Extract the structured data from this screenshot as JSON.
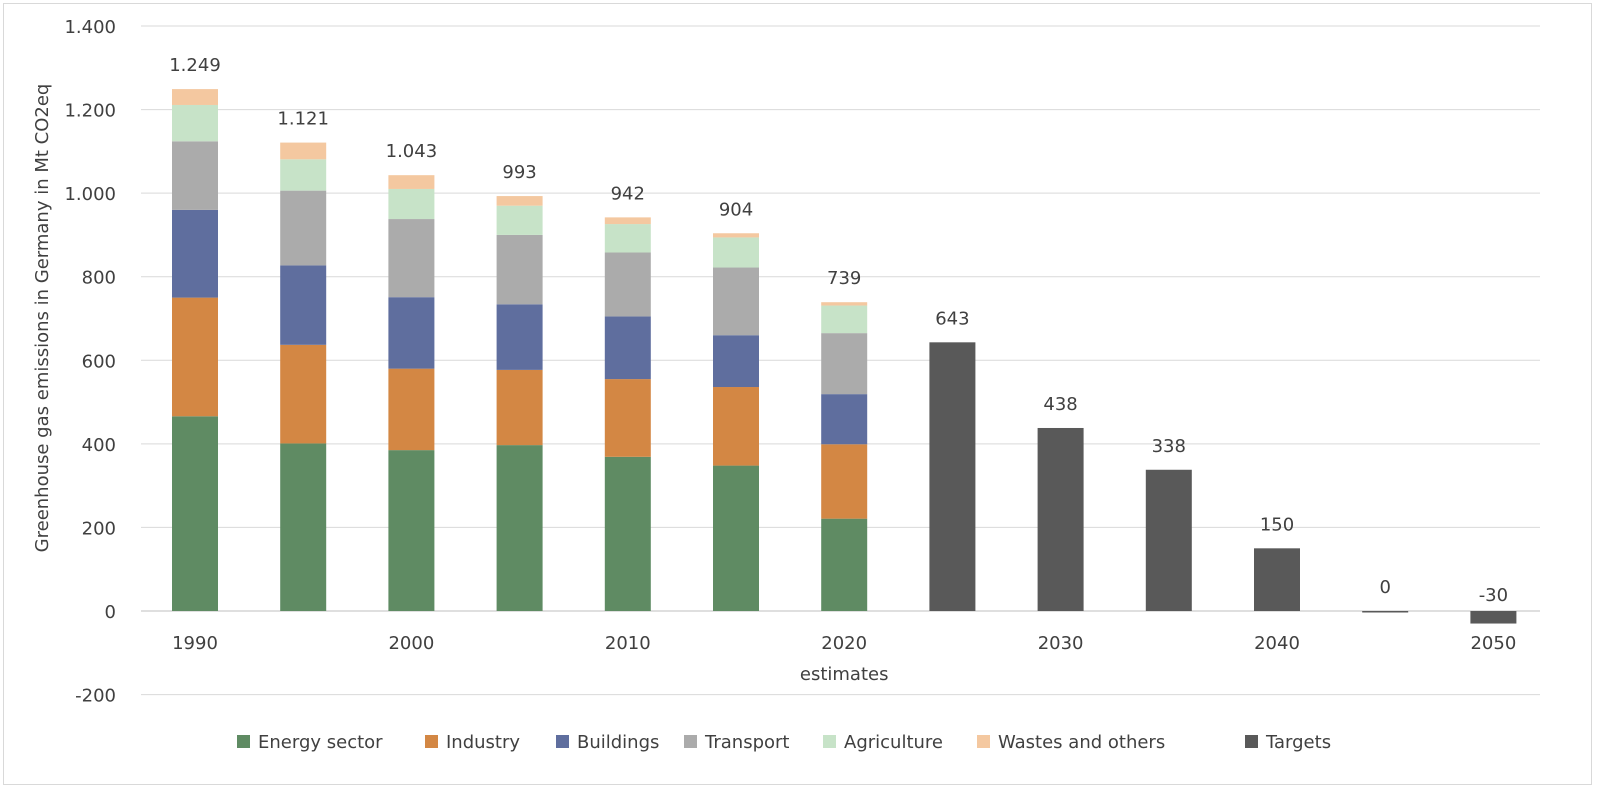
{
  "chart_data": {
    "type": "bar",
    "stacked": true,
    "title": "",
    "ylabel": "Greenhouse gas emissions in Germany in Mt CO2eq",
    "xlabel": "",
    "ylim": [
      -200,
      1400
    ],
    "yticks": [
      -200,
      0,
      200,
      400,
      600,
      800,
      1000,
      1200,
      1400
    ],
    "ytick_labels": [
      "-200",
      "0",
      "200",
      "400",
      "600",
      "800",
      "1.000",
      "1.200",
      "1.400"
    ],
    "grid": true,
    "legend_position": "bottom",
    "categories": [
      "1990",
      "1995",
      "2000",
      "2005",
      "2010",
      "2015",
      "2020",
      "2025",
      "2030",
      "2035",
      "2040",
      "2045",
      "2050"
    ],
    "tick_labels": [
      "1990",
      "",
      "2000",
      "",
      "2010",
      "",
      "2020",
      "",
      "2030",
      "",
      "2040",
      "",
      "2050"
    ],
    "tick_sublabels": [
      "",
      "",
      "",
      "",
      "",
      "",
      "estimates",
      "",
      "",
      "",
      "",
      "",
      ""
    ],
    "series": [
      {
        "name": "Energy sector",
        "color": "#5f8b63",
        "values": [
          466,
          401,
          385,
          397,
          369,
          348,
          221,
          null,
          null,
          null,
          null,
          null,
          null
        ]
      },
      {
        "name": "Industry",
        "color": "#d38744",
        "values": [
          284,
          236,
          195,
          180,
          186,
          188,
          178,
          null,
          null,
          null,
          null,
          null,
          null
        ]
      },
      {
        "name": "Buildings",
        "color": "#5f6e9e",
        "values": [
          210,
          190,
          171,
          157,
          150,
          124,
          120,
          null,
          null,
          null,
          null,
          null,
          null
        ]
      },
      {
        "name": "Transport",
        "color": "#ababab",
        "values": [
          164,
          179,
          187,
          166,
          153,
          162,
          146,
          null,
          null,
          null,
          null,
          null,
          null
        ]
      },
      {
        "name": "Agriculture",
        "color": "#c7e3c8",
        "values": [
          87,
          75,
          72,
          70,
          68,
          72,
          66,
          null,
          null,
          null,
          null,
          null,
          null
        ]
      },
      {
        "name": "Wastes and others",
        "color": "#f4c8a0",
        "values": [
          38,
          40,
          33,
          23,
          16,
          10,
          8,
          null,
          null,
          null,
          null,
          null,
          null
        ]
      },
      {
        "name": "Targets",
        "color": "#595959",
        "values": [
          null,
          null,
          null,
          null,
          null,
          null,
          null,
          643,
          438,
          338,
          150,
          0,
          -30
        ]
      }
    ],
    "data_labels": [
      "1.249",
      "1.121",
      "1.043",
      "993",
      "942",
      "904",
      "739",
      "643",
      "438",
      "338",
      "150",
      "0",
      "-30"
    ],
    "totals": [
      1249,
      1121,
      1043,
      993,
      942,
      904,
      739,
      643,
      438,
      338,
      150,
      0,
      -30
    ]
  }
}
